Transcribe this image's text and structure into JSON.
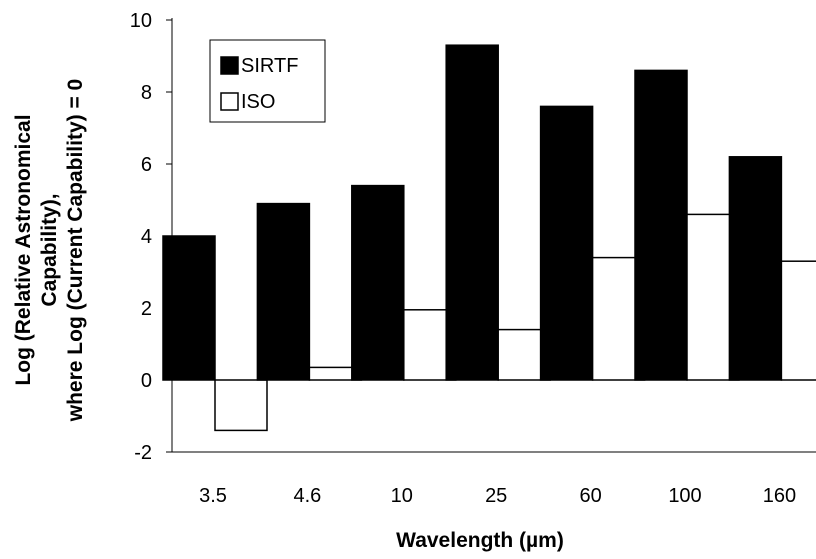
{
  "chart_data": {
    "type": "bar",
    "categories": [
      "3.5",
      "4.6",
      "10",
      "25",
      "60",
      "100",
      "160"
    ],
    "series": [
      {
        "name": "SIRTF",
        "values": [
          4.0,
          4.9,
          5.4,
          9.3,
          7.6,
          8.6,
          6.2
        ],
        "color": "#000000"
      },
      {
        "name": "ISO",
        "values": [
          -1.4,
          0.35,
          1.95,
          1.4,
          3.4,
          4.6,
          3.3
        ],
        "color": "#ffffff"
      }
    ],
    "xlabel": "Wavelength (µm)",
    "ylabel_lines": [
      "Log (Relative Astronomical",
      "Capability),",
      "where Log (Current Capability) = 0"
    ],
    "ylim": [
      -2,
      10
    ],
    "yticks": [
      "-2",
      "0",
      "2",
      "4",
      "6",
      "8",
      "10"
    ],
    "grid": false,
    "legend_position": "top-left"
  }
}
